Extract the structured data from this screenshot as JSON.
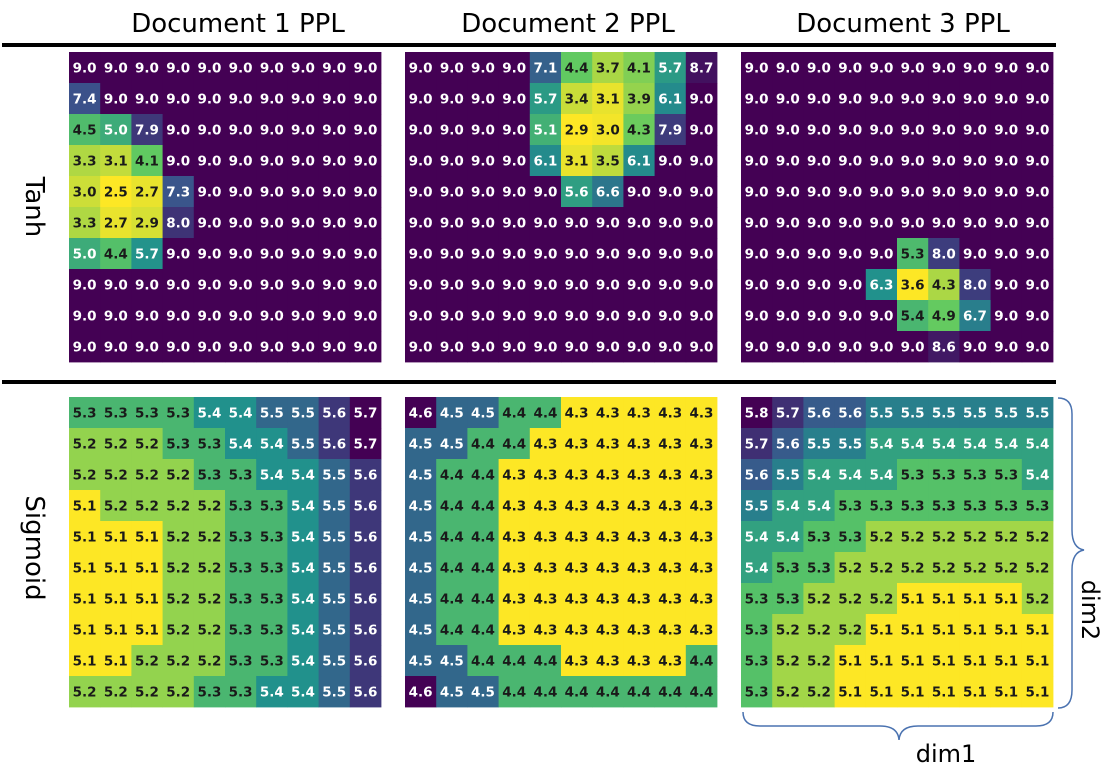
{
  "chart_data": {
    "type": "heatmap",
    "columns": [
      "Document 1 PPL",
      "Document 2 PPL",
      "Document 3 PPL"
    ],
    "rows": [
      "Tanh",
      "Sigmoid"
    ],
    "xlabel": "dim1",
    "ylabel": "dim2",
    "colormap": [
      "#440154",
      "#3b528b",
      "#21918c",
      "#5ec962",
      "#fde725"
    ],
    "panels": [
      {
        "row": "Tanh",
        "column": "Document 1 PPL",
        "values": [
          [
            9.0,
            9.0,
            9.0,
            9.0,
            9.0,
            9.0,
            9.0,
            9.0,
            9.0,
            9.0
          ],
          [
            7.4,
            9.0,
            9.0,
            9.0,
            9.0,
            9.0,
            9.0,
            9.0,
            9.0,
            9.0
          ],
          [
            4.5,
            5.0,
            7.9,
            9.0,
            9.0,
            9.0,
            9.0,
            9.0,
            9.0,
            9.0
          ],
          [
            3.3,
            3.1,
            4.1,
            9.0,
            9.0,
            9.0,
            9.0,
            9.0,
            9.0,
            9.0
          ],
          [
            3.0,
            2.5,
            2.7,
            7.3,
            9.0,
            9.0,
            9.0,
            9.0,
            9.0,
            9.0
          ],
          [
            3.3,
            2.7,
            2.9,
            8.0,
            9.0,
            9.0,
            9.0,
            9.0,
            9.0,
            9.0
          ],
          [
            5.0,
            4.4,
            5.7,
            9.0,
            9.0,
            9.0,
            9.0,
            9.0,
            9.0,
            9.0
          ],
          [
            9.0,
            9.0,
            9.0,
            9.0,
            9.0,
            9.0,
            9.0,
            9.0,
            9.0,
            9.0
          ],
          [
            9.0,
            9.0,
            9.0,
            9.0,
            9.0,
            9.0,
            9.0,
            9.0,
            9.0,
            9.0
          ],
          [
            9.0,
            9.0,
            9.0,
            9.0,
            9.0,
            9.0,
            9.0,
            9.0,
            9.0,
            9.0
          ]
        ]
      },
      {
        "row": "Tanh",
        "column": "Document 2 PPL",
        "values": [
          [
            9.0,
            9.0,
            9.0,
            9.0,
            7.1,
            4.4,
            3.7,
            4.1,
            5.7,
            8.7
          ],
          [
            9.0,
            9.0,
            9.0,
            9.0,
            5.7,
            3.4,
            3.1,
            3.9,
            6.1,
            9.0
          ],
          [
            9.0,
            9.0,
            9.0,
            9.0,
            5.1,
            2.9,
            3.0,
            4.3,
            7.9,
            9.0
          ],
          [
            9.0,
            9.0,
            9.0,
            9.0,
            6.1,
            3.1,
            3.5,
            6.1,
            9.0,
            9.0
          ],
          [
            9.0,
            9.0,
            9.0,
            9.0,
            9.0,
            5.6,
            6.6,
            9.0,
            9.0,
            9.0
          ],
          [
            9.0,
            9.0,
            9.0,
            9.0,
            9.0,
            9.0,
            9.0,
            9.0,
            9.0,
            9.0
          ],
          [
            9.0,
            9.0,
            9.0,
            9.0,
            9.0,
            9.0,
            9.0,
            9.0,
            9.0,
            9.0
          ],
          [
            9.0,
            9.0,
            9.0,
            9.0,
            9.0,
            9.0,
            9.0,
            9.0,
            9.0,
            9.0
          ],
          [
            9.0,
            9.0,
            9.0,
            9.0,
            9.0,
            9.0,
            9.0,
            9.0,
            9.0,
            9.0
          ],
          [
            9.0,
            9.0,
            9.0,
            9.0,
            9.0,
            9.0,
            9.0,
            9.0,
            9.0,
            9.0
          ]
        ]
      },
      {
        "row": "Tanh",
        "column": "Document 3 PPL",
        "values": [
          [
            9.0,
            9.0,
            9.0,
            9.0,
            9.0,
            9.0,
            9.0,
            9.0,
            9.0,
            9.0
          ],
          [
            9.0,
            9.0,
            9.0,
            9.0,
            9.0,
            9.0,
            9.0,
            9.0,
            9.0,
            9.0
          ],
          [
            9.0,
            9.0,
            9.0,
            9.0,
            9.0,
            9.0,
            9.0,
            9.0,
            9.0,
            9.0
          ],
          [
            9.0,
            9.0,
            9.0,
            9.0,
            9.0,
            9.0,
            9.0,
            9.0,
            9.0,
            9.0
          ],
          [
            9.0,
            9.0,
            9.0,
            9.0,
            9.0,
            9.0,
            9.0,
            9.0,
            9.0,
            9.0
          ],
          [
            9.0,
            9.0,
            9.0,
            9.0,
            9.0,
            9.0,
            9.0,
            9.0,
            9.0,
            9.0
          ],
          [
            9.0,
            9.0,
            9.0,
            9.0,
            9.0,
            5.3,
            8.0,
            9.0,
            9.0,
            9.0
          ],
          [
            9.0,
            9.0,
            9.0,
            9.0,
            6.3,
            3.6,
            4.3,
            8.0,
            9.0,
            9.0
          ],
          [
            9.0,
            9.0,
            9.0,
            9.0,
            9.0,
            5.4,
            4.9,
            6.7,
            9.0,
            9.0
          ],
          [
            9.0,
            9.0,
            9.0,
            9.0,
            9.0,
            9.0,
            8.6,
            9.0,
            9.0,
            9.0
          ]
        ]
      },
      {
        "row": "Sigmoid",
        "column": "Document 1 PPL",
        "values": [
          [
            5.3,
            5.3,
            5.3,
            5.3,
            5.4,
            5.4,
            5.5,
            5.5,
            5.6,
            5.7
          ],
          [
            5.2,
            5.2,
            5.2,
            5.3,
            5.3,
            5.4,
            5.4,
            5.5,
            5.6,
            5.7
          ],
          [
            5.2,
            5.2,
            5.2,
            5.2,
            5.3,
            5.3,
            5.4,
            5.4,
            5.5,
            5.6
          ],
          [
            5.1,
            5.2,
            5.2,
            5.2,
            5.2,
            5.3,
            5.3,
            5.4,
            5.5,
            5.6
          ],
          [
            5.1,
            5.1,
            5.1,
            5.2,
            5.2,
            5.3,
            5.3,
            5.4,
            5.5,
            5.6
          ],
          [
            5.1,
            5.1,
            5.1,
            5.2,
            5.2,
            5.3,
            5.3,
            5.4,
            5.5,
            5.6
          ],
          [
            5.1,
            5.1,
            5.1,
            5.2,
            5.2,
            5.3,
            5.3,
            5.4,
            5.5,
            5.6
          ],
          [
            5.1,
            5.1,
            5.1,
            5.2,
            5.2,
            5.3,
            5.3,
            5.4,
            5.5,
            5.6
          ],
          [
            5.1,
            5.1,
            5.2,
            5.2,
            5.2,
            5.3,
            5.3,
            5.4,
            5.5,
            5.6
          ],
          [
            5.2,
            5.2,
            5.2,
            5.2,
            5.3,
            5.3,
            5.4,
            5.4,
            5.5,
            5.6
          ]
        ]
      },
      {
        "row": "Sigmoid",
        "column": "Document 2 PPL",
        "values": [
          [
            4.6,
            4.5,
            4.5,
            4.4,
            4.4,
            4.3,
            4.3,
            4.3,
            4.3,
            4.3
          ],
          [
            4.5,
            4.5,
            4.4,
            4.4,
            4.3,
            4.3,
            4.3,
            4.3,
            4.3,
            4.3
          ],
          [
            4.5,
            4.4,
            4.4,
            4.3,
            4.3,
            4.3,
            4.3,
            4.3,
            4.3,
            4.3
          ],
          [
            4.5,
            4.4,
            4.4,
            4.3,
            4.3,
            4.3,
            4.3,
            4.3,
            4.3,
            4.3
          ],
          [
            4.5,
            4.4,
            4.4,
            4.3,
            4.3,
            4.3,
            4.3,
            4.3,
            4.3,
            4.3
          ],
          [
            4.5,
            4.4,
            4.4,
            4.3,
            4.3,
            4.3,
            4.3,
            4.3,
            4.3,
            4.3
          ],
          [
            4.5,
            4.4,
            4.4,
            4.3,
            4.3,
            4.3,
            4.3,
            4.3,
            4.3,
            4.3
          ],
          [
            4.5,
            4.4,
            4.4,
            4.3,
            4.3,
            4.3,
            4.3,
            4.3,
            4.3,
            4.3
          ],
          [
            4.5,
            4.5,
            4.4,
            4.4,
            4.4,
            4.3,
            4.3,
            4.3,
            4.3,
            4.4
          ],
          [
            4.6,
            4.5,
            4.5,
            4.4,
            4.4,
            4.4,
            4.4,
            4.4,
            4.4,
            4.4
          ]
        ]
      },
      {
        "row": "Sigmoid",
        "column": "Document 3 PPL",
        "values": [
          [
            5.8,
            5.7,
            5.6,
            5.6,
            5.5,
            5.5,
            5.5,
            5.5,
            5.5,
            5.5
          ],
          [
            5.7,
            5.6,
            5.5,
            5.5,
            5.4,
            5.4,
            5.4,
            5.4,
            5.4,
            5.4
          ],
          [
            5.6,
            5.5,
            5.4,
            5.4,
            5.4,
            5.3,
            5.3,
            5.3,
            5.3,
            5.4
          ],
          [
            5.5,
            5.4,
            5.4,
            5.3,
            5.3,
            5.3,
            5.3,
            5.3,
            5.3,
            5.3
          ],
          [
            5.4,
            5.4,
            5.3,
            5.3,
            5.2,
            5.2,
            5.2,
            5.2,
            5.2,
            5.2
          ],
          [
            5.4,
            5.3,
            5.3,
            5.2,
            5.2,
            5.2,
            5.2,
            5.2,
            5.2,
            5.2
          ],
          [
            5.3,
            5.3,
            5.2,
            5.2,
            5.2,
            5.1,
            5.1,
            5.1,
            5.1,
            5.2
          ],
          [
            5.3,
            5.2,
            5.2,
            5.2,
            5.1,
            5.1,
            5.1,
            5.1,
            5.1,
            5.1
          ],
          [
            5.3,
            5.2,
            5.2,
            5.1,
            5.1,
            5.1,
            5.1,
            5.1,
            5.1,
            5.1
          ],
          [
            5.3,
            5.2,
            5.2,
            5.1,
            5.1,
            5.1,
            5.1,
            5.1,
            5.1,
            5.1
          ]
        ]
      }
    ]
  }
}
